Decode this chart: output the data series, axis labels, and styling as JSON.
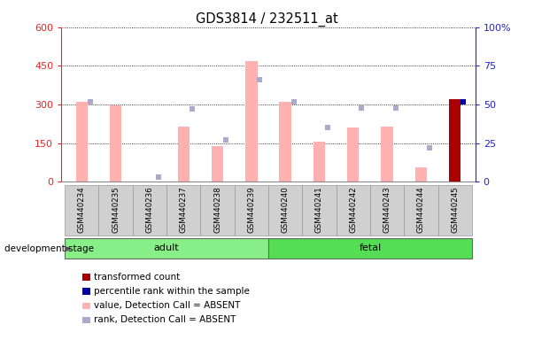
{
  "title": "GDS3814 / 232511_at",
  "samples": [
    "GSM440234",
    "GSM440235",
    "GSM440236",
    "GSM440237",
    "GSM440238",
    "GSM440239",
    "GSM440240",
    "GSM440241",
    "GSM440242",
    "GSM440243",
    "GSM440244",
    "GSM440245"
  ],
  "pink_values": [
    310,
    296,
    0,
    213,
    140,
    470,
    310,
    155,
    210,
    215,
    55,
    0
  ],
  "blue_rank_pct": [
    52,
    0,
    3,
    47,
    27,
    66,
    52,
    35,
    48,
    48,
    22,
    0
  ],
  "red_bar_values": [
    0,
    0,
    0,
    0,
    0,
    0,
    0,
    0,
    0,
    0,
    0,
    320
  ],
  "blue_bar_pct": [
    0,
    0,
    0,
    0,
    0,
    0,
    0,
    0,
    0,
    0,
    0,
    52
  ],
  "absent_flags": [
    true,
    true,
    true,
    true,
    true,
    true,
    true,
    true,
    true,
    true,
    true,
    false
  ],
  "ylim_left": [
    0,
    600
  ],
  "ylim_right": [
    0,
    100
  ],
  "left_ticks": [
    0,
    150,
    300,
    450,
    600
  ],
  "right_ticks": [
    0,
    25,
    50,
    75,
    100
  ],
  "left_tick_labels": [
    "0",
    "150",
    "300",
    "450",
    "600"
  ],
  "right_tick_labels": [
    "0",
    "25",
    "50",
    "75",
    "100%"
  ],
  "left_color": "#ee2222",
  "right_color": "#2222cc",
  "pink_bar_color": "#ffb0b0",
  "blue_rank_color": "#aaaacc",
  "red_bar_color": "#aa0000",
  "dark_blue_color": "#0000aa",
  "sample_box_color": "#cccccc",
  "group_adult_color": "#88ee88",
  "group_fetal_color": "#55dd55",
  "legend_items": [
    {
      "label": "transformed count",
      "color": "#aa0000"
    },
    {
      "label": "percentile rank within the sample",
      "color": "#0000aa"
    },
    {
      "label": "value, Detection Call = ABSENT",
      "color": "#ffb0b0"
    },
    {
      "label": "rank, Detection Call = ABSENT",
      "color": "#aaaacc"
    }
  ]
}
